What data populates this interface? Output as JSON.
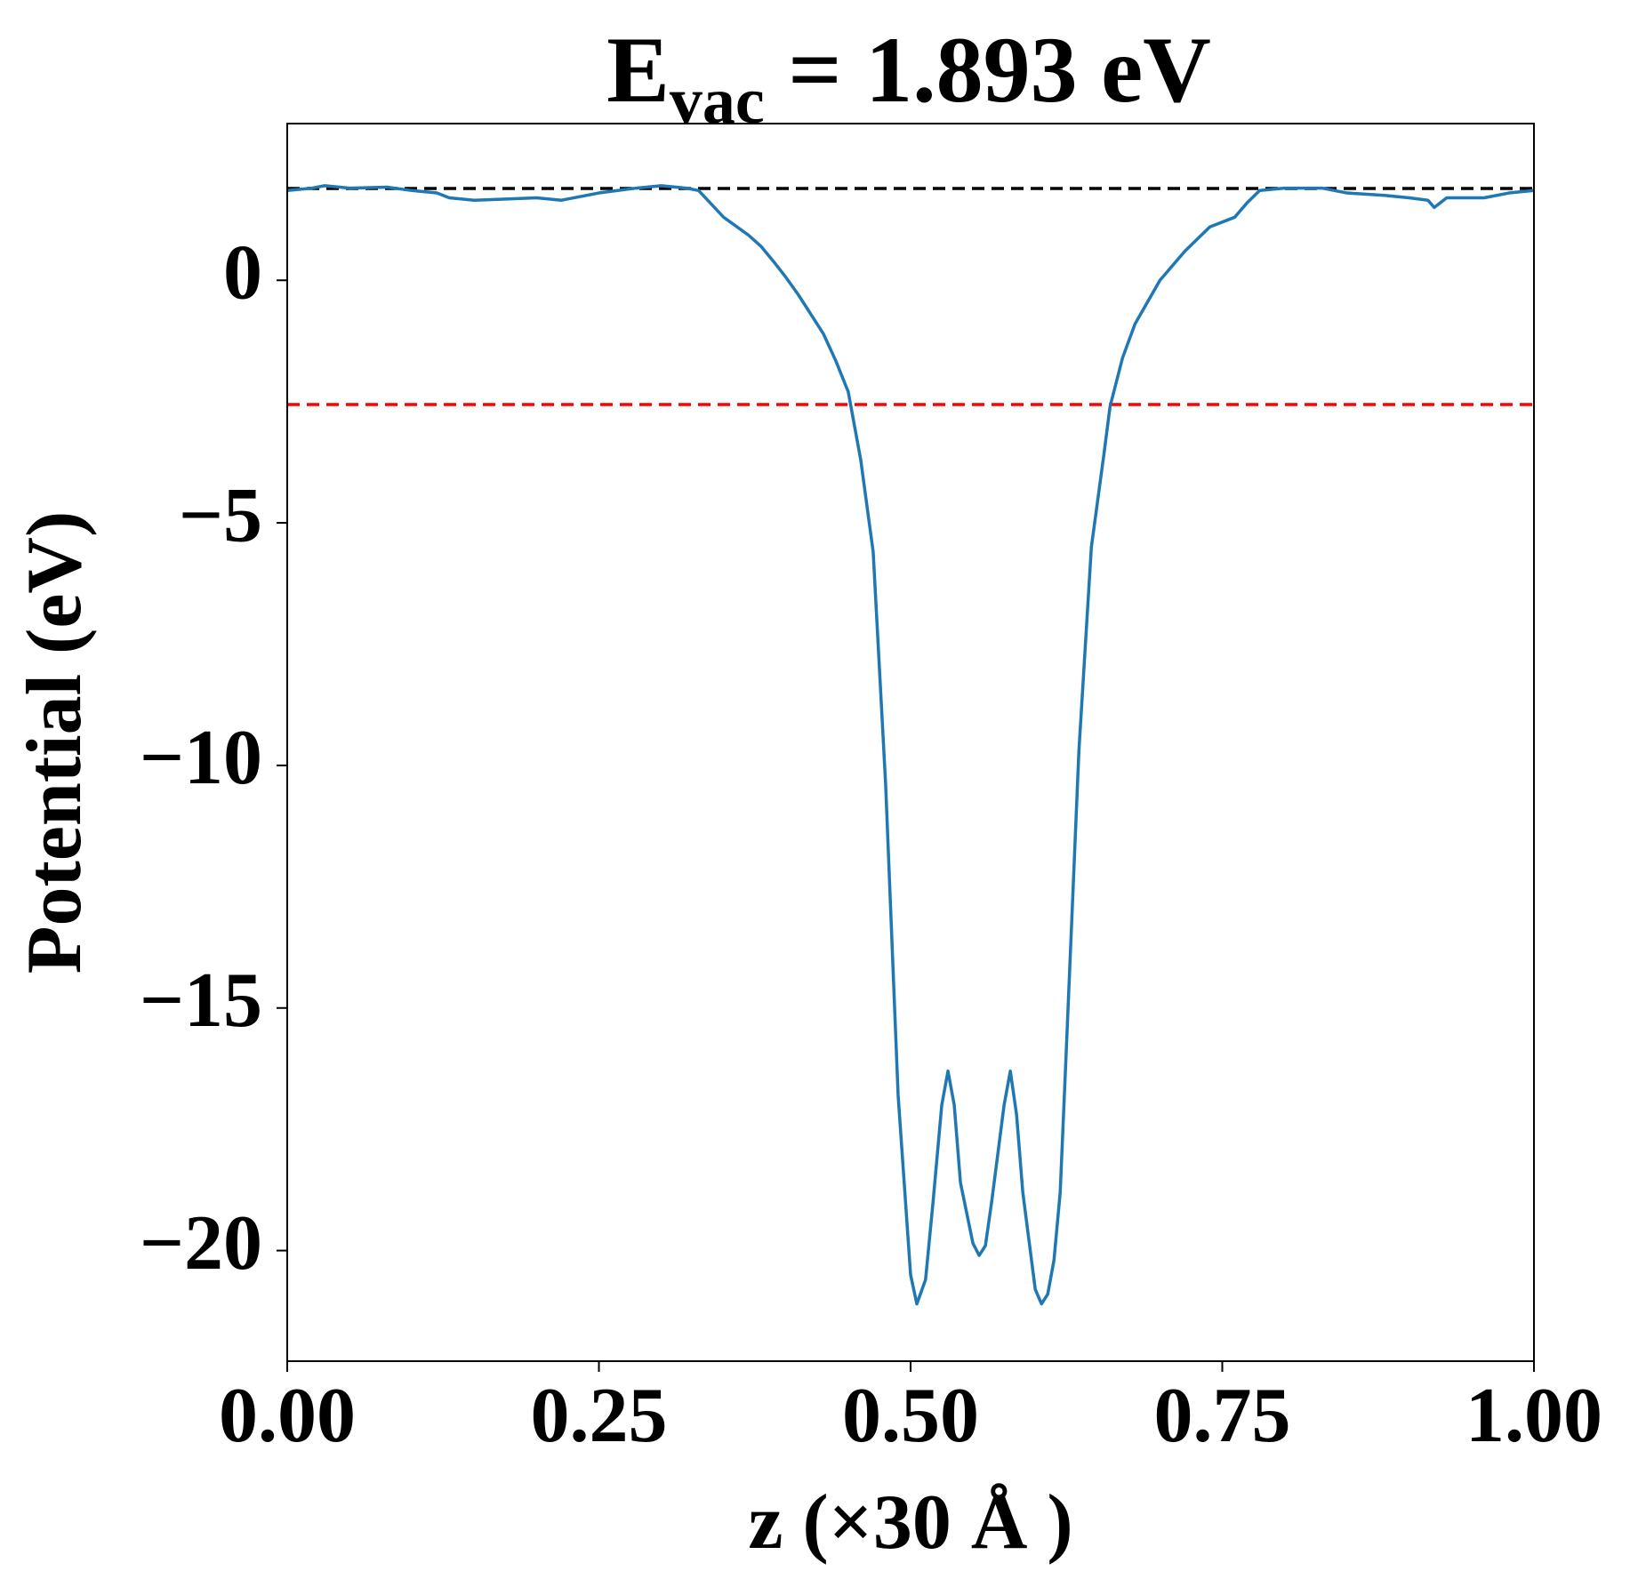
{
  "chart_data": {
    "type": "line",
    "title_parts": [
      "E",
      "vac",
      " = 1.893 eV"
    ],
    "xlabel": "z (×30 Å )",
    "ylabel": "Potential (eV)",
    "x": [
      0,
      0.02,
      0.03,
      0.05,
      0.08,
      0.1,
      0.12,
      0.13,
      0.15,
      0.18,
      0.2,
      0.22,
      0.25,
      0.28,
      0.3,
      0.32,
      0.33,
      0.35,
      0.37,
      0.38,
      0.39,
      0.4,
      0.41,
      0.42,
      0.43,
      0.44,
      0.45,
      0.46,
      0.47,
      0.48,
      0.49,
      0.5,
      0.505,
      0.512,
      0.518,
      0.525,
      0.53,
      0.535,
      0.54,
      0.55,
      0.555,
      0.56,
      0.565,
      0.575,
      0.58,
      0.585,
      0.59,
      0.6,
      0.605,
      0.61,
      0.615,
      0.62,
      0.625,
      0.635,
      0.645,
      0.655,
      0.66,
      0.67,
      0.68,
      0.7,
      0.72,
      0.74,
      0.76,
      0.77,
      0.78,
      0.8,
      0.83,
      0.85,
      0.88,
      0.9,
      0.915,
      0.92,
      0.93,
      0.96,
      0.98,
      1.0
    ],
    "series": [
      {
        "name": "potential",
        "color": "#1f77b4",
        "values": [
          1.85,
          1.9,
          1.95,
          1.9,
          1.92,
          1.85,
          1.8,
          1.7,
          1.65,
          1.68,
          1.7,
          1.65,
          1.8,
          1.9,
          1.95,
          1.9,
          1.85,
          1.3,
          0.93,
          0.7,
          0.39,
          0.06,
          -0.3,
          -0.7,
          -1.1,
          -1.66,
          -2.3,
          -3.7,
          -5.6,
          -10.4,
          -16.8,
          -20.5,
          -21.1,
          -20.6,
          -19.0,
          -17.0,
          -16.3,
          -17.0,
          -18.6,
          -19.85,
          -20.1,
          -19.9,
          -19.0,
          -17.0,
          -16.3,
          -17.2,
          -18.8,
          -20.8,
          -21.1,
          -20.9,
          -20.2,
          -18.8,
          -15.8,
          -9.7,
          -5.5,
          -3.6,
          -2.6,
          -1.6,
          -0.9,
          0.0,
          0.6,
          1.1,
          1.3,
          1.6,
          1.85,
          1.9,
          1.9,
          1.8,
          1.75,
          1.7,
          1.65,
          1.5,
          1.7,
          1.7,
          1.8,
          1.85
        ]
      }
    ],
    "hlines": [
      {
        "value": 1.893,
        "color": "#000000"
      },
      {
        "value": -2.56,
        "color": "#ff0000"
      }
    ],
    "xlim": [
      0,
      1
    ],
    "ylim": [
      -22.28,
      3.23
    ],
    "xticks": [
      {
        "value": 0,
        "label": "0.00"
      },
      {
        "value": 0.25,
        "label": "0.25"
      },
      {
        "value": 0.5,
        "label": "0.50"
      },
      {
        "value": 0.75,
        "label": "0.75"
      },
      {
        "value": 1,
        "label": "1.00"
      }
    ],
    "yticks": [
      {
        "value": -20,
        "label": "−20"
      },
      {
        "value": -15,
        "label": "−15"
      },
      {
        "value": -10,
        "label": "−10"
      },
      {
        "value": -5,
        "label": "−5"
      },
      0
    ]
  }
}
